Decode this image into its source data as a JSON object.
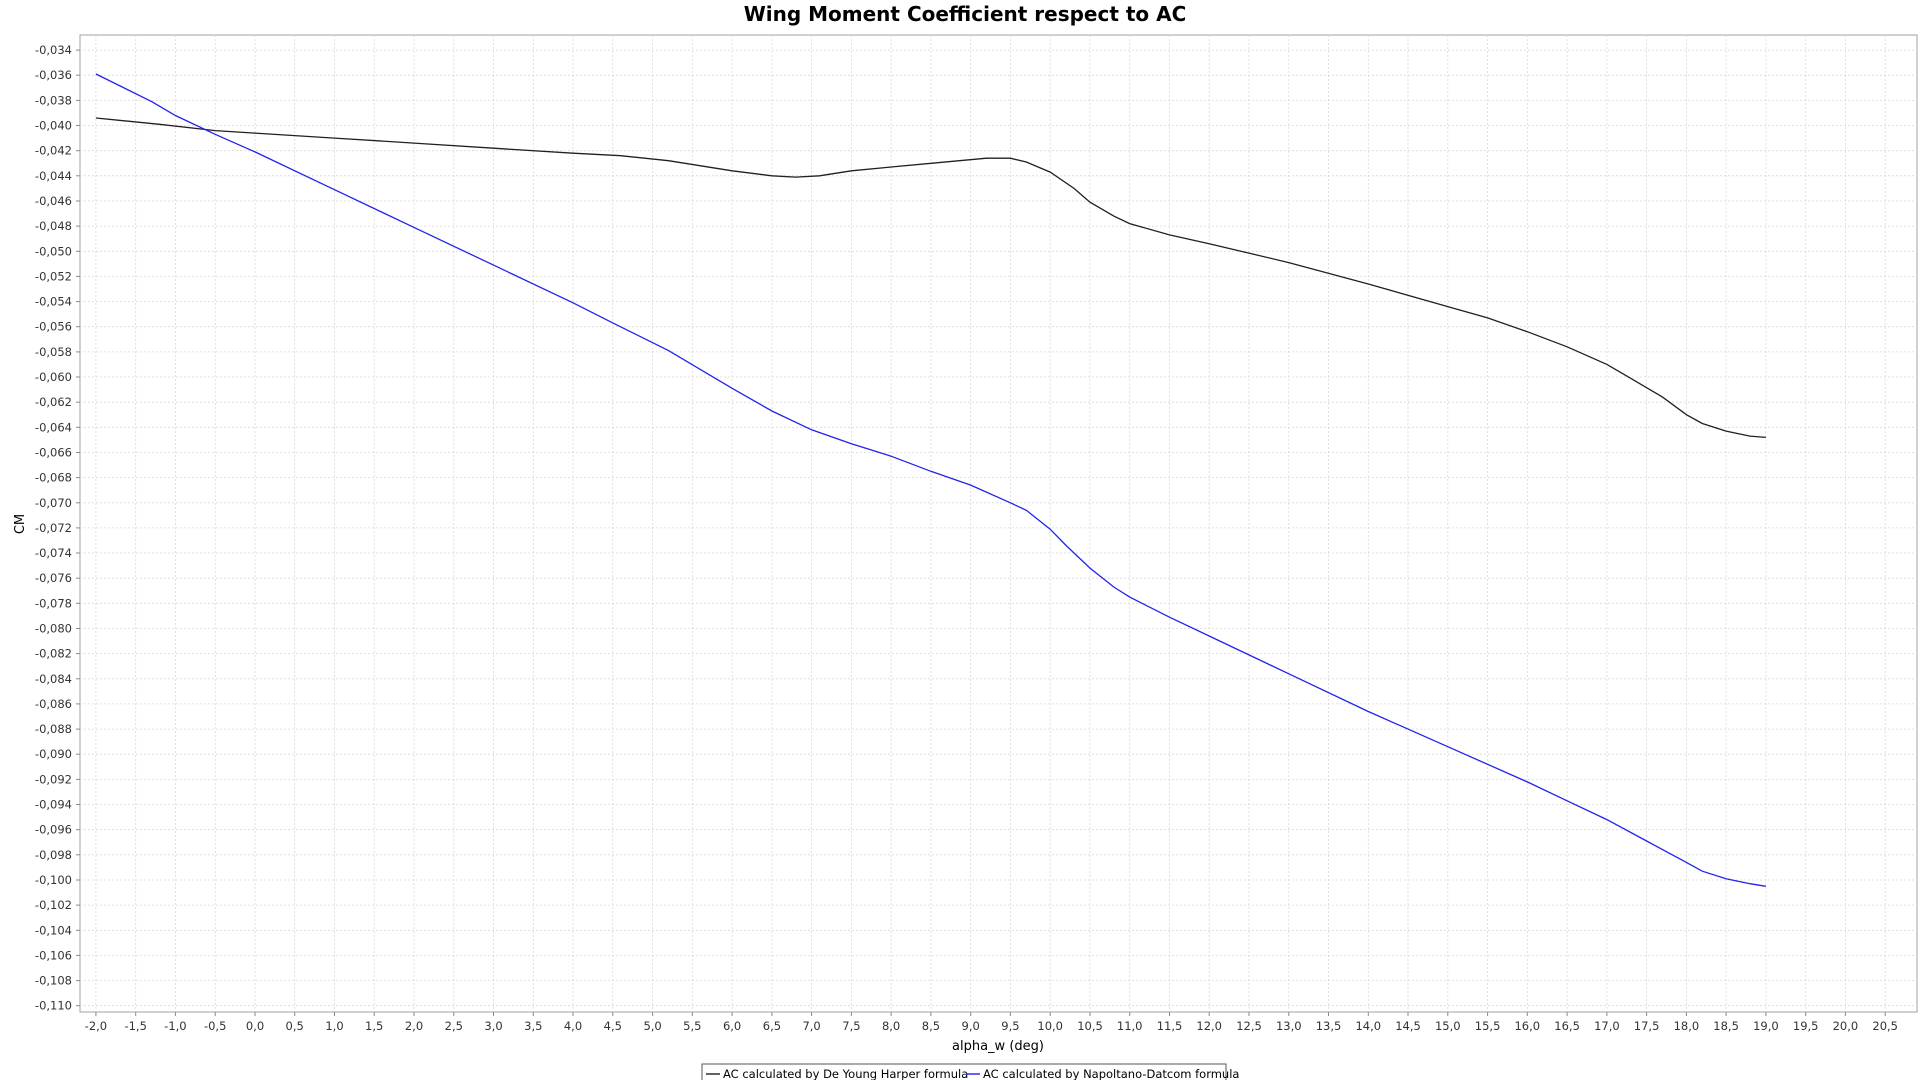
{
  "chart_data": {
    "type": "line",
    "title": "Wing Moment Coefficient respect to AC",
    "xlabel": "alpha_w (deg)",
    "ylabel": "CM",
    "xlim": [
      -2.2,
      20.9
    ],
    "ylim": [
      -0.1105,
      -0.0328
    ],
    "xticks": [
      -2.0,
      -1.5,
      -1.0,
      -0.5,
      0.0,
      0.5,
      1.0,
      1.5,
      2.0,
      2.5,
      3.0,
      3.5,
      4.0,
      4.5,
      5.0,
      5.5,
      6.0,
      6.5,
      7.0,
      7.5,
      8.0,
      8.5,
      9.0,
      9.5,
      10.0,
      10.5,
      11.0,
      11.5,
      12.0,
      12.5,
      13.0,
      13.5,
      14.0,
      14.5,
      15.0,
      15.5,
      16.0,
      16.5,
      17.0,
      17.5,
      18.0,
      18.5,
      19.0,
      19.5,
      20.0,
      20.5
    ],
    "xtick_labels": [
      "-2,0",
      "-1,5",
      "-1,0",
      "-0,5",
      "0,0",
      "0,5",
      "1,0",
      "1,5",
      "2,0",
      "2,5",
      "3,0",
      "3,5",
      "4,0",
      "4,5",
      "5,0",
      "5,5",
      "6,0",
      "6,5",
      "7,0",
      "7,5",
      "8,0",
      "8,5",
      "9,0",
      "9,5",
      "10,0",
      "10,5",
      "11,0",
      "11,5",
      "12,0",
      "12,5",
      "13,0",
      "13,5",
      "14,0",
      "14,5",
      "15,0",
      "15,5",
      "16,0",
      "16,5",
      "17,0",
      "17,5",
      "18,0",
      "18,5",
      "19,0",
      "19,5",
      "20,0",
      "20,5"
    ],
    "yticks": [
      -0.034,
      -0.036,
      -0.038,
      -0.04,
      -0.042,
      -0.044,
      -0.046,
      -0.048,
      -0.05,
      -0.052,
      -0.054,
      -0.056,
      -0.058,
      -0.06,
      -0.062,
      -0.064,
      -0.066,
      -0.068,
      -0.07,
      -0.072,
      -0.074,
      -0.076,
      -0.078,
      -0.08,
      -0.082,
      -0.084,
      -0.086,
      -0.088,
      -0.09,
      -0.092,
      -0.094,
      -0.096,
      -0.098,
      -0.1,
      -0.102,
      -0.104,
      -0.106,
      -0.108,
      -0.11
    ],
    "ytick_labels": [
      "-0,034",
      "-0,036",
      "-0,038",
      "-0,040",
      "-0,042",
      "-0,044",
      "-0,046",
      "-0,048",
      "-0,050",
      "-0,052",
      "-0,054",
      "-0,056",
      "-0,058",
      "-0,060",
      "-0,062",
      "-0,064",
      "-0,066",
      "-0,068",
      "-0,070",
      "-0,072",
      "-0,074",
      "-0,076",
      "-0,078",
      "-0,080",
      "-0,082",
      "-0,084",
      "-0,086",
      "-0,088",
      "-0,090",
      "-0,092",
      "-0,094",
      "-0,096",
      "-0,098",
      "-0,100",
      "-0,102",
      "-0,104",
      "-0,106",
      "-0,108",
      "-0,110"
    ],
    "grid": true,
    "legend_position": "bottom-center",
    "series": [
      {
        "name": "AC calculated by De Young Harper formula",
        "color": "#202020",
        "x": [
          -2.0,
          -1.2,
          -0.5,
          0.0,
          1.0,
          2.0,
          3.0,
          4.0,
          4.6,
          5.2,
          6.0,
          6.5,
          6.8,
          7.1,
          7.5,
          8.0,
          8.5,
          9.2,
          9.5,
          9.7,
          10.0,
          10.3,
          10.5,
          10.8,
          11.0,
          11.5,
          12.0,
          13.0,
          14.0,
          15.0,
          15.5,
          16.0,
          16.5,
          17.0,
          17.3,
          17.7,
          18.0,
          18.2,
          18.5,
          18.8,
          19.0
        ],
        "y": [
          -0.0394,
          -0.0399,
          -0.0404,
          -0.0406,
          -0.041,
          -0.0414,
          -0.0418,
          -0.0422,
          -0.0424,
          -0.0428,
          -0.0436,
          -0.044,
          -0.0441,
          -0.044,
          -0.0436,
          -0.0433,
          -0.043,
          -0.0426,
          -0.0426,
          -0.0429,
          -0.0437,
          -0.045,
          -0.0461,
          -0.0472,
          -0.0478,
          -0.0487,
          -0.0494,
          -0.0509,
          -0.0526,
          -0.0544,
          -0.0553,
          -0.0564,
          -0.0576,
          -0.059,
          -0.0601,
          -0.0616,
          -0.063,
          -0.0637,
          -0.0643,
          -0.0647,
          -0.0648
        ]
      },
      {
        "name": "AC calculated by Napoltano-Datcom formula",
        "color": "#2222ee",
        "x": [
          -2.0,
          -1.3,
          -1.0,
          -0.5,
          0.0,
          1.0,
          2.0,
          3.0,
          4.0,
          4.5,
          5.2,
          6.0,
          6.5,
          7.0,
          7.5,
          8.0,
          8.5,
          9.0,
          9.5,
          9.7,
          10.0,
          10.2,
          10.5,
          10.8,
          11.0,
          11.5,
          12.0,
          13.0,
          14.0,
          15.0,
          16.0,
          16.5,
          17.0,
          17.5,
          18.0,
          18.2,
          18.5,
          18.8,
          19.0
        ],
        "y": [
          -0.0359,
          -0.0381,
          -0.0392,
          -0.0407,
          -0.0421,
          -0.0451,
          -0.0481,
          -0.0511,
          -0.0541,
          -0.0557,
          -0.0579,
          -0.0609,
          -0.0627,
          -0.0642,
          -0.0653,
          -0.0663,
          -0.0675,
          -0.0686,
          -0.07,
          -0.0706,
          -0.0721,
          -0.0734,
          -0.0752,
          -0.0767,
          -0.0775,
          -0.0791,
          -0.0806,
          -0.0836,
          -0.0866,
          -0.0894,
          -0.0922,
          -0.0937,
          -0.0952,
          -0.0969,
          -0.0986,
          -0.0993,
          -0.0999,
          -0.1003,
          -0.1005
        ]
      }
    ]
  }
}
